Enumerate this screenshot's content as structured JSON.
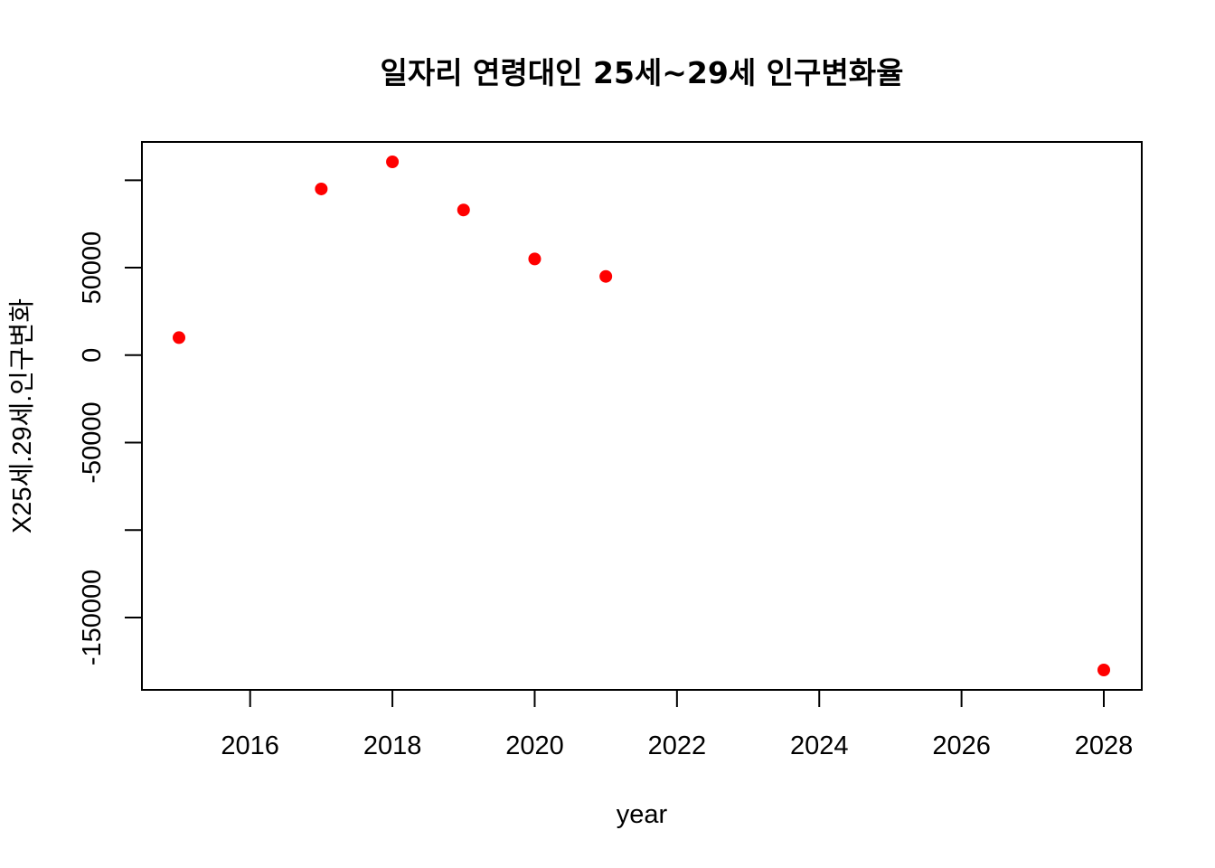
{
  "chart_data": {
    "type": "scatter",
    "title": "일자리 연령대인 25세~29세 인구변화율",
    "xlabel": "year",
    "ylabel": "X25세.29세.인구변화",
    "x": [
      2015,
      2017,
      2018,
      2019,
      2020,
      2021,
      2028
    ],
    "y": [
      10000,
      95000,
      110500,
      83000,
      55000,
      45000,
      -180000
    ],
    "xlim": [
      2015,
      2028
    ],
    "ylim": [
      -180000,
      110500
    ],
    "x_ticks": [
      2016,
      2018,
      2020,
      2022,
      2024,
      2026,
      2028
    ],
    "y_ticks": [
      -200000,
      -150000,
      -100000,
      -50000,
      0,
      50000,
      100000
    ],
    "y_tick_labels": [
      "",
      "-150000",
      "",
      "-50000",
      "0",
      "50000",
      ""
    ],
    "point_color": "#ff0000",
    "grid": false,
    "legend": "none"
  }
}
